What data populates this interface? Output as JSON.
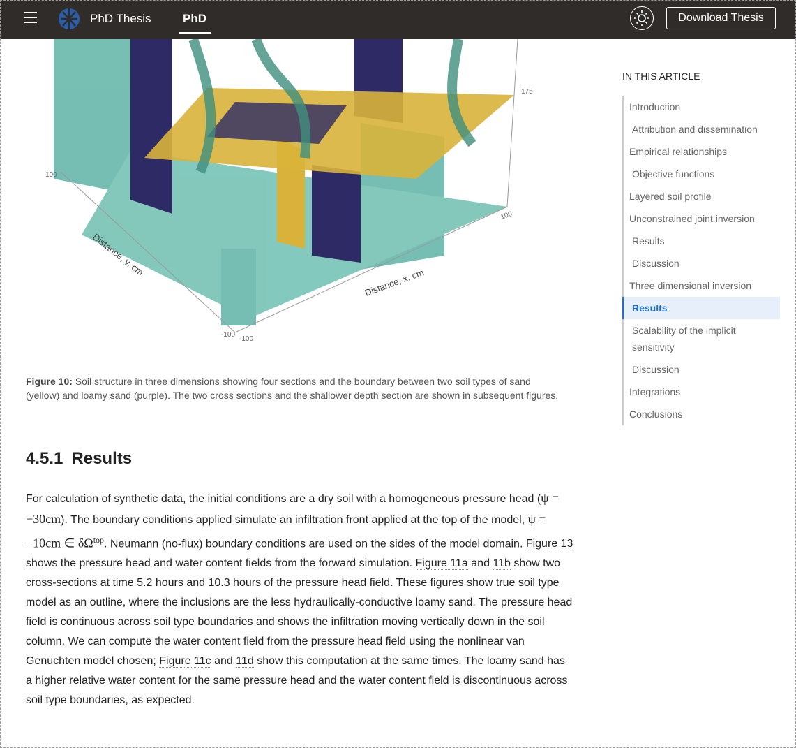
{
  "header": {
    "site_title": "PhD Thesis",
    "tab": "PhD",
    "download": "Download Thesis"
  },
  "figure": {
    "labels": {
      "z_top": "175",
      "y_max": "100",
      "x_max": "100",
      "y_axis": "Distance, y, cm",
      "x_axis": "Distance, x, cm",
      "y_min": "-100",
      "x_min": "-100"
    },
    "caption_label": "Figure 10:",
    "caption": "Soil structure in three dimensions showing four sections and the boundary between two soil types of sand (yellow) and loamy sand (purple). The two cross sections and the shallower depth section are shown in subsequent figures."
  },
  "section": {
    "number": "4.5.1",
    "title": "Results"
  },
  "paragraph": [
    "For calculation of synthetic data, the initial conditions are a dry soil with a homogeneous pressure head (",
    "ψ = −30cm",
    "). The boundary conditions applied simulate an infiltration front applied at the top of the model, ",
    "ψ = −10cm ∈ δΩ",
    "top",
    ". Neumann (no-flux) boundary conditions are used on the sides of the model domain. ",
    "Figure 13",
    " shows the pressure head and water content fields from the forward simulation. ",
    "Figure 11a",
    " and ",
    "11b",
    " show two cross-sections at time 5.2 hours and 10.3 hours of the pressure head field. These figures show true soil type model as an outline, where the inclusions are the less hydraulically-conductive loamy sand. The pressure head field is continuous across soil type boundaries and shows the infiltration moving vertically down in the soil column. We can compute the water content field from the pressure head field using the nonlinear van Genuchten model chosen; ",
    "Figure 11c",
    " and ",
    "11d",
    " show this computation at the same times. The loamy sand has a higher relative water content for the same pressure head and the water content field is discontinuous across soil type boundaries, as expected."
  ],
  "toc": {
    "title": "IN THIS ARTICLE",
    "items": [
      "Introduction",
      "Attribution and dissemination",
      "Empirical relationships",
      "Objective functions",
      "Layered soil profile",
      "Unconstrained joint inversion",
      "Results",
      "Discussion",
      "Three dimensional inversion",
      "Results",
      "Scalability of the implicit sensitivity",
      "Discussion",
      "Integrations",
      "Conclusions"
    ]
  }
}
